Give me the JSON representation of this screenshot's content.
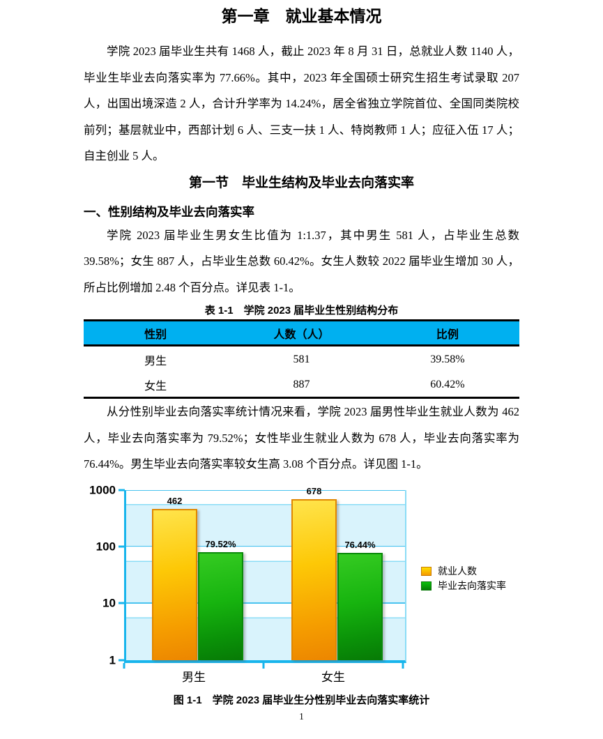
{
  "document": {
    "chapter_title": "第一章　就业基本情况",
    "paragraph_1": "学院 2023 届毕业生共有 1468 人，截止 2023 年 8 月 31 日，总就业人数 1140 人，毕业生毕业去向落实率为 77.66%。其中，2023 年全国硕士研究生招生考试录取 207 人，出国出境深造 2 人，合计升学率为 14.24%，居全省独立学院首位、全国同类院校前列；基层就业中，西部计划 6 人、三支一扶 1 人、特岗教师 1 人；应征入伍 17 人；自主创业 5 人。",
    "section_title": "第一节　毕业生结构及毕业去向落实率",
    "subsection_title": "一、性别结构及毕业去向落实率",
    "paragraph_2": "学院 2023 届毕业生男女生比值为 1:1.37，其中男生 581 人，占毕业生总数 39.58%；女生 887 人，占毕业生总数 60.42%。女生人数较 2022 届毕业生增加 30 人，所占比例增加 2.48 个百分点。详见表 1-1。",
    "paragraph_3": "从分性别毕业去向落实率统计情况来看，学院 2023 届男性毕业生就业人数为 462 人，毕业去向落实率为 79.52%；女性毕业生就业人数为 678 人，毕业去向落实率为 76.44%。男生毕业去向落实率较女生高 3.08 个百分点。详见图 1-1。",
    "page_number": "1"
  },
  "table_1_1": {
    "caption": "表 1-1　学院 2023 届毕业生性别结构分布",
    "header_bg_color": "#00b0f0",
    "headers": [
      "性别",
      "人数（人）",
      "比例"
    ],
    "rows": [
      [
        "男生",
        "581",
        "39.58%"
      ],
      [
        "女生",
        "887",
        "60.42%"
      ]
    ]
  },
  "figure_1_1": {
    "caption": "图 1-1　学院 2023 届毕业生分性别毕业去向落实率统计"
  },
  "chart_data": {
    "type": "bar",
    "y_scale": "log",
    "categories": [
      "男生",
      "女生"
    ],
    "series": [
      {
        "name": "就业人数",
        "color": "#f9a800",
        "values": [
          462,
          678
        ],
        "labels": [
          "462",
          "678"
        ]
      },
      {
        "name": "毕业去向落实率",
        "color": "#0a9108",
        "values": [
          79.52,
          76.44
        ],
        "labels": [
          "79.52%",
          "76.44%"
        ]
      }
    ],
    "y_ticks": [
      1000,
      100,
      10,
      1
    ],
    "ylim": [
      1,
      1000
    ],
    "grid": true,
    "legend_position": "right",
    "plot_bg": "#d9f3fc",
    "grid_color": "#49c3ef",
    "axis_color": "#18b5ec",
    "title": "",
    "xlabel": "",
    "ylabel": ""
  }
}
